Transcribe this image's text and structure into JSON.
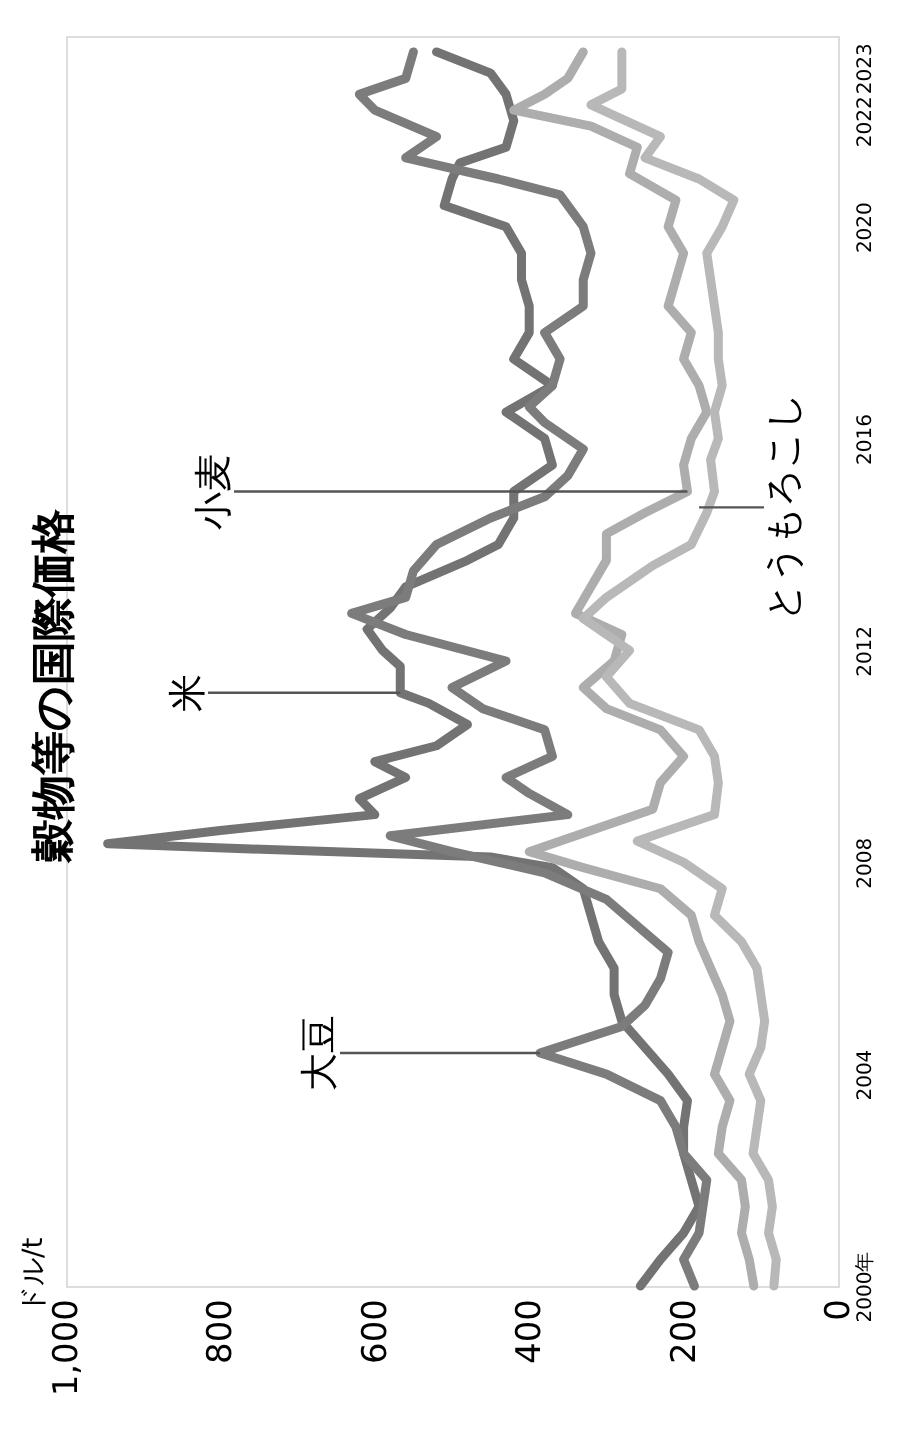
{
  "chart_data": {
    "type": "line",
    "title": "穀物等の国際価格",
    "xlim": [
      1000,
      0
    ],
    "xticks": [
      {
        "value": 1000,
        "label": "1,000"
      },
      800,
      600,
      400,
      200,
      0
    ],
    "ylim": [
      2000,
      2023.6
    ],
    "yticks": [
      {
        "value": 2000,
        "label": "2000年"
      },
      2004,
      2008,
      2012,
      2016,
      2020,
      2022,
      2023
    ],
    "grid": false,
    "line_style": "solid",
    "marker": "none",
    "annotations": [
      "ドル/t",
      {
        "text": "大豆",
        "x": 386,
        "y": 2004.4
      },
      {
        "text": "米",
        "x": 567,
        "y": 2011.2
      },
      {
        "text": "小麦",
        "x": 195,
        "y": 2015.0
      },
      {
        "text": "とうもろこし",
        "x": 180,
        "y": 2014.7
      }
    ],
    "series": [
      {
        "color": "#737373",
        "values": [
          2000.0,
          2000.5,
          2001.0,
          2001.5,
          2002.0,
          2002.5,
          2003.0,
          2003.5,
          2004.0,
          2004.5,
          2005.0,
          2005.5,
          2006.0,
          2006.5,
          2007.0,
          2007.5,
          2007.9,
          2008.1,
          2008.25,
          2008.35,
          2008.6,
          2008.9,
          2009.2,
          2009.6,
          2009.9,
          2010.2,
          2010.6,
          2011.0,
          2011.2,
          2011.7,
          2012.0,
          2012.4,
          2012.8,
          2013.2,
          2013.7,
          2014.0,
          2014.5,
          2015.0,
          2015.5,
          2016.0,
          2016.5,
          2017.0,
          2017.5,
          2018.0,
          2018.5,
          2019.0,
          2019.5,
          2020.0,
          2020.4,
          2020.9,
          2021.2,
          2021.5,
          2022.0,
          2022.5,
          2022.9,
          2023.3
        ],
        "x": [
          256,
          230,
          200,
          180,
          190,
          200,
          200,
          195,
          220,
          250,
          280,
          290,
          290,
          310,
          320,
          330,
          370,
          450,
          760,
          946,
          800,
          600,
          620,
          560,
          600,
          520,
          480,
          530,
          567,
          567,
          590,
          610,
          580,
          560,
          480,
          440,
          420,
          420,
          370,
          380,
          430,
          370,
          420,
          400,
          400,
          410,
          410,
          430,
          510,
          500,
          490,
          430,
          420,
          430,
          450,
          520
        ]
      },
      {
        "color": "#7c7c7c",
        "values": [
          2000.0,
          2000.5,
          2001.0,
          2001.5,
          2002.0,
          2002.5,
          2003.0,
          2003.5,
          2004.0,
          2004.4,
          2004.9,
          2005.3,
          2005.8,
          2006.3,
          2006.8,
          2007.3,
          2007.8,
          2008.2,
          2008.5,
          2008.9,
          2009.3,
          2009.6,
          2010.0,
          2010.5,
          2010.9,
          2011.3,
          2011.8,
          2012.3,
          2012.7,
          2013.0,
          2013.5,
          2014.0,
          2014.5,
          2014.9,
          2015.3,
          2015.8,
          2016.3,
          2016.6,
          2017.0,
          2017.5,
          2018.0,
          2018.5,
          2019.0,
          2019.5,
          2020.0,
          2020.6,
          2020.9,
          2021.3,
          2021.7,
          2022.2,
          2022.5,
          2022.8,
          2023.3
        ],
        "x": [
          186,
          200,
          180,
          175,
          170,
          200,
          210,
          230,
          300,
          386,
          280,
          250,
          230,
          220,
          260,
          300,
          380,
          500,
          580,
          350,
          400,
          430,
          370,
          380,
          460,
          500,
          430,
          560,
          630,
          560,
          550,
          520,
          450,
          380,
          350,
          330,
          380,
          400,
          370,
          360,
          380,
          330,
          330,
          320,
          330,
          360,
          440,
          560,
          520,
          600,
          620,
          560,
          550
        ]
      },
      {
        "color": "#adadad",
        "values": [
          2000.0,
          2000.5,
          2001.0,
          2001.5,
          2002.0,
          2002.5,
          2003.0,
          2003.5,
          2004.0,
          2004.5,
          2005.0,
          2005.5,
          2006.0,
          2006.5,
          2007.0,
          2007.5,
          2007.9,
          2008.2,
          2008.6,
          2009.0,
          2009.5,
          2010.0,
          2010.5,
          2010.9,
          2011.3,
          2011.8,
          2012.3,
          2012.7,
          2013.2,
          2013.7,
          2014.2,
          2014.6,
          2015.0,
          2015.5,
          2016.0,
          2016.5,
          2017.0,
          2017.5,
          2018.0,
          2018.5,
          2019.0,
          2019.5,
          2020.0,
          2020.5,
          2021.0,
          2021.5,
          2021.9,
          2022.2,
          2022.5,
          2022.8,
          2023.3
        ],
        "x": [
          109,
          115,
          125,
          120,
          125,
          155,
          150,
          140,
          160,
          150,
          140,
          150,
          165,
          180,
          190,
          230,
          330,
          400,
          320,
          240,
          230,
          200,
          230,
          300,
          330,
          290,
          280,
          340,
          320,
          300,
          300,
          250,
          195,
          200,
          190,
          170,
          180,
          200,
          190,
          220,
          210,
          200,
          220,
          210,
          270,
          260,
          320,
          420,
          380,
          350,
          330
        ]
      },
      {
        "color": "#b8b8b8",
        "values": [
          2000.0,
          2000.5,
          2001.0,
          2001.5,
          2002.0,
          2002.5,
          2003.0,
          2003.5,
          2004.0,
          2004.5,
          2005.0,
          2005.5,
          2006.0,
          2006.5,
          2007.0,
          2007.5,
          2008.0,
          2008.4,
          2008.9,
          2009.5,
          2010.0,
          2010.5,
          2011.0,
          2011.5,
          2012.0,
          2012.6,
          2013.0,
          2013.6,
          2014.0,
          2014.6,
          2015.0,
          2015.6,
          2016.0,
          2016.5,
          2017.0,
          2017.5,
          2018.0,
          2018.5,
          2019.0,
          2019.5,
          2020.0,
          2020.5,
          2020.9,
          2021.3,
          2021.7,
          2022.3,
          2022.6,
          2023.3
        ],
        "x": [
          83,
          80,
          90,
          85,
          90,
          110,
          105,
          100,
          115,
          100,
          95,
          100,
          105,
          125,
          160,
          150,
          200,
          260,
          160,
          155,
          160,
          180,
          270,
          300,
          270,
          330,
          300,
          240,
          190,
          170,
          160,
          165,
          155,
          160,
          150,
          155,
          155,
          160,
          165,
          170,
          150,
          135,
          180,
          250,
          230,
          320,
          280,
          280
        ]
      }
    ]
  }
}
